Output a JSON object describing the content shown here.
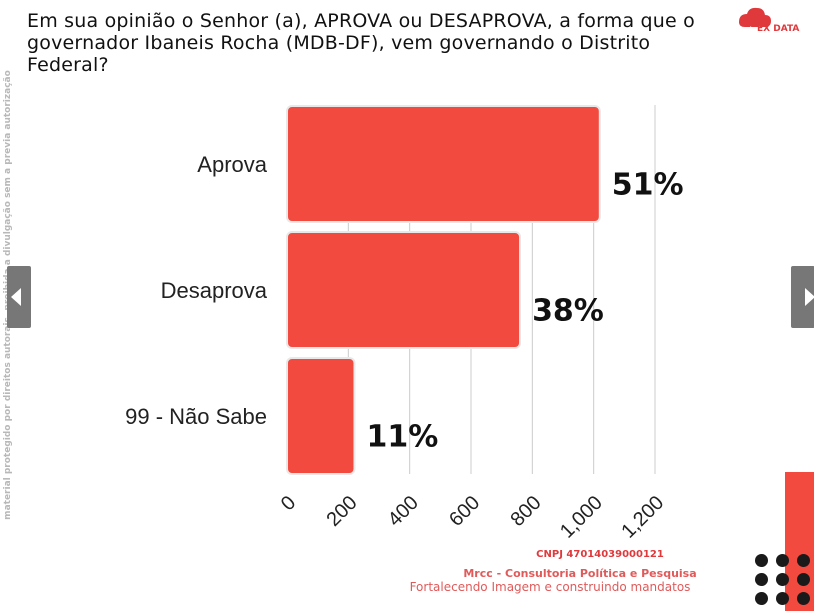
{
  "title": "Em sua opinião o Senhor (a), APROVA ou DESAPROVA, a forma que o governador Ibaneis Rocha (MDB-DF), vem governando o Distrito Federal?",
  "logo": {
    "text": "EX DATA",
    "icon": "cloud-tree-icon"
  },
  "watermark": "material protegido por direitos autorais, proibida a divulgação sem a previa autorização",
  "footer": {
    "cnpj": "CNPJ 47014039000121",
    "company": "Mrcc - Consultoria Política e Pesquisa",
    "slogan": "Fortalecendo Imagem e construindo mandatos"
  },
  "colors": {
    "bar": "#f24a3f",
    "bar_edge": "#e8e8e8",
    "grid": "#cccccc"
  },
  "chart_data": {
    "type": "bar",
    "orientation": "horizontal",
    "categories": [
      "Aprova",
      "Desaprova",
      "99 - Não Sabe"
    ],
    "values": [
      1020,
      760,
      220
    ],
    "data_labels": [
      "51%",
      "38%",
      "11%"
    ],
    "x_ticks": [
      0,
      200,
      400,
      600,
      800,
      1000,
      1200
    ],
    "x_tick_labels": [
      "0",
      "200",
      "400",
      "600",
      "800",
      "1,000",
      "1,200"
    ],
    "xlim": [
      0,
      1200
    ],
    "grid": true,
    "legend": "none"
  }
}
